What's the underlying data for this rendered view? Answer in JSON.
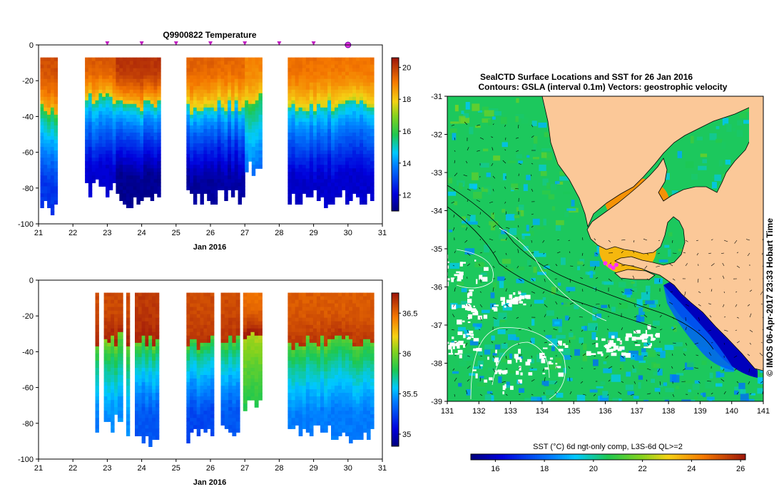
{
  "chart_data": [
    {
      "type": "heatmap",
      "panel": "temperature-section",
      "title": "Q9900822  Temperature",
      "xlabel": "Jan 2016",
      "ylabel": "",
      "xlim": [
        21,
        31
      ],
      "ylim": [
        -100,
        0
      ],
      "xticks": [
        "21",
        "22",
        "23",
        "24",
        "25",
        "26",
        "27",
        "28",
        "29",
        "30",
        "31"
      ],
      "yticks": [
        "0",
        "-20",
        "-40",
        "-60",
        "-80",
        "-100"
      ],
      "colorbar": {
        "range": [
          11,
          20.6
        ],
        "ticks": [
          "12",
          "14",
          "16",
          "18",
          "20"
        ]
      },
      "profile_markers_x": [
        23,
        24,
        25,
        26,
        27,
        28,
        29
      ],
      "highlight_marker_x": 30,
      "profile_blocks": [
        {
          "x0": 21.05,
          "x1": 21.55,
          "max_depth": -91,
          "surface_value": 19.8,
          "bottom_value": 12.8,
          "thermocline_depth": -36
        },
        {
          "x0": 22.35,
          "x1": 23.25,
          "max_depth": -79,
          "surface_value": 19.6,
          "bottom_value": 11.9,
          "thermocline_depth": -30
        },
        {
          "x0": 23.25,
          "x1": 24.55,
          "max_depth": -87,
          "surface_value": 20.2,
          "bottom_value": 11.2,
          "thermocline_depth": -33
        },
        {
          "x0": 25.3,
          "x1": 26.1,
          "max_depth": -85,
          "surface_value": 19.5,
          "bottom_value": 11.3,
          "thermocline_depth": -34
        },
        {
          "x0": 26.1,
          "x1": 27.0,
          "max_depth": -84,
          "surface_value": 19.4,
          "bottom_value": 11.4,
          "thermocline_depth": -33
        },
        {
          "x0": 27.0,
          "x1": 27.5,
          "max_depth": -69,
          "surface_value": 19.0,
          "bottom_value": 13.6,
          "thermocline_depth": -29
        },
        {
          "x0": 28.25,
          "x1": 29.3,
          "max_depth": -84,
          "surface_value": 19.3,
          "bottom_value": 11.8,
          "thermocline_depth": -34
        },
        {
          "x0": 29.3,
          "x1": 30.75,
          "max_depth": -85,
          "surface_value": 19.2,
          "bottom_value": 11.9,
          "thermocline_depth": -33
        }
      ]
    },
    {
      "type": "heatmap",
      "panel": "salinity-section",
      "title": "",
      "xlabel": "Jan 2016",
      "ylabel": "",
      "xlim": [
        21,
        31
      ],
      "ylim": [
        -100,
        0
      ],
      "xticks": [
        "21",
        "22",
        "23",
        "24",
        "25",
        "26",
        "27",
        "28",
        "29",
        "30",
        "31"
      ],
      "yticks": [
        "0",
        "-20",
        "-40",
        "-60",
        "-80",
        "-100"
      ],
      "colorbar": {
        "range": [
          34.85,
          36.75
        ],
        "ticks": [
          "35",
          "35.5",
          "36",
          "36.5"
        ]
      },
      "profile_blocks": [
        {
          "x0": 22.65,
          "x1": 22.75,
          "max_depth": -85,
          "surface_value": 36.6,
          "bottom_value": 35.4,
          "thermocline_depth": -32
        },
        {
          "x0": 22.9,
          "x1": 23.3,
          "max_depth": -79,
          "surface_value": 36.6,
          "bottom_value": 35.45,
          "thermocline_depth": -32
        },
        {
          "x0": 23.3,
          "x1": 23.45,
          "max_depth": -79,
          "surface_value": 36.6,
          "bottom_value": 35.45,
          "thermocline_depth": -32
        },
        {
          "x0": 23.55,
          "x1": 23.65,
          "max_depth": -81,
          "surface_value": 36.6,
          "bottom_value": 35.45,
          "thermocline_depth": -32
        },
        {
          "x0": 23.8,
          "x1": 24.5,
          "max_depth": -87,
          "surface_value": 36.65,
          "bottom_value": 35.3,
          "thermocline_depth": -33
        },
        {
          "x0": 25.3,
          "x1": 26.1,
          "max_depth": -85,
          "surface_value": 36.6,
          "bottom_value": 35.25,
          "thermocline_depth": -34
        },
        {
          "x0": 26.3,
          "x1": 26.85,
          "max_depth": -84,
          "surface_value": 36.6,
          "bottom_value": 35.3,
          "thermocline_depth": -33
        },
        {
          "x0": 26.95,
          "x1": 27.5,
          "max_depth": -70,
          "surface_value": 36.5,
          "bottom_value": 35.8,
          "thermocline_depth": -29
        },
        {
          "x0": 28.25,
          "x1": 29.3,
          "max_depth": -84,
          "surface_value": 36.55,
          "bottom_value": 35.4,
          "thermocline_depth": -34
        },
        {
          "x0": 29.3,
          "x1": 30.75,
          "max_depth": -85,
          "surface_value": 36.55,
          "bottom_value": 35.4,
          "thermocline_depth": -33
        }
      ]
    },
    {
      "type": "heatmap",
      "panel": "sst-map",
      "title": "SealCTD Surface Locations and SST for 26 Jan 2016",
      "subtitle": "Contours: GSLA (interval 0.1m) Vectors: geostrophic velocity",
      "colorbar_label": "SST (°C) 6d ngt-only comp, L3S-6d QL>=2",
      "side_label": "© IMOS 06-Apr-2017 23:33 Hobart Time",
      "xlim": [
        131,
        141
      ],
      "ylim": [
        -39,
        -31
      ],
      "xticks": [
        "131",
        "132",
        "133",
        "134",
        "135",
        "136",
        "137",
        "138",
        "139",
        "140",
        "141"
      ],
      "yticks": [
        "-31",
        "-32",
        "-33",
        "-34",
        "-35",
        "-36",
        "-37",
        "-38",
        "-39"
      ],
      "colorbar": {
        "range": [
          15,
          26.2
        ],
        "ticks": [
          "16",
          "18",
          "20",
          "22",
          "24",
          "26"
        ]
      },
      "ocean_sst_mean": 20.5,
      "gulf_sst": 23.5,
      "upwelling_sst": 15.8,
      "seal_locations": [
        [
          136.0,
          -35.38
        ],
        [
          136.15,
          -35.45
        ],
        [
          136.25,
          -35.5
        ],
        [
          136.35,
          -35.42
        ]
      ]
    }
  ]
}
